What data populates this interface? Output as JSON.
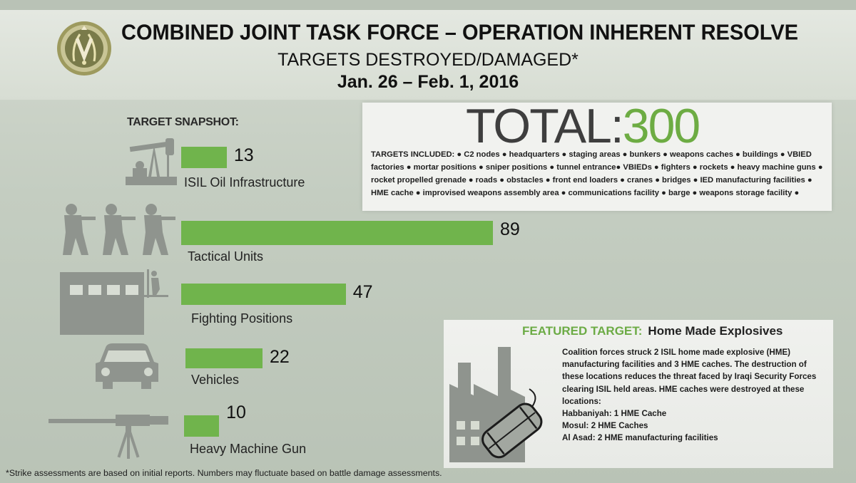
{
  "header": {
    "title": "COMBINED JOINT TASK FORCE – OPERATION INHERENT RESOLVE",
    "subtitle": "TARGETS DESTROYED/DAMAGED*",
    "date_range": "Jan. 26 – Feb. 1, 2016"
  },
  "snapshot_label": "TARGET SNAPSHOT:",
  "colors": {
    "bar": "#70b44c",
    "total_number": "#6dac43",
    "featured_lead": "#6cab45"
  },
  "total": {
    "label": "TOTAL:",
    "value": "300"
  },
  "targets_included": {
    "label": "TARGETS INCLUDED:",
    "text": "● C2 nodes ● headquarters ● staging areas ● bunkers ● weapons caches ● buildings ● VBIED factories ● mortar positions ● sniper positions ● tunnel entrance● VBIEDs ● fighters ● rockets ● heavy machine guns ● rocket propelled grenade ● roads ● obstacles ● front end loaders ● cranes ● bridges ● IED manufacturing facilities ● HME cache ● improvised weapons assembly area ● communications facility ● barge ● weapons storage facility ●"
  },
  "featured": {
    "lead": "FEATURED TARGET:",
    "name": "Home Made Explosives",
    "body": "Coalition forces struck 2 ISIL home made explosive (HME) manufacturing facilities and 3 HME caches.  The destruction of these locations reduces the threat faced by Iraqi Security Forces clearing ISIL held areas.  HME caches were destroyed at these locations:",
    "locations": [
      "Habbaniyah: 1 HME Cache",
      "Mosul: 2 HME Caches",
      "Al Asad: 2 HME manufacturing facilities"
    ]
  },
  "footnote": "*Strike assessments are based on initial reports. Numbers may fluctuate based on battle damage assessments.",
  "chart_data": {
    "type": "bar",
    "orientation": "horizontal",
    "title": "",
    "categories": [
      "ISIL Oil Infrastructure",
      "Tactical Units",
      "Fighting Positions",
      "Vehicles",
      "Heavy Machine Gun"
    ],
    "values": [
      13,
      89,
      47,
      22,
      10
    ],
    "xlim": [
      0,
      89
    ],
    "grid": false,
    "icons": [
      "oil-pump-icon",
      "soldiers-icon",
      "building-icon",
      "car-icon",
      "machine-gun-icon"
    ]
  }
}
